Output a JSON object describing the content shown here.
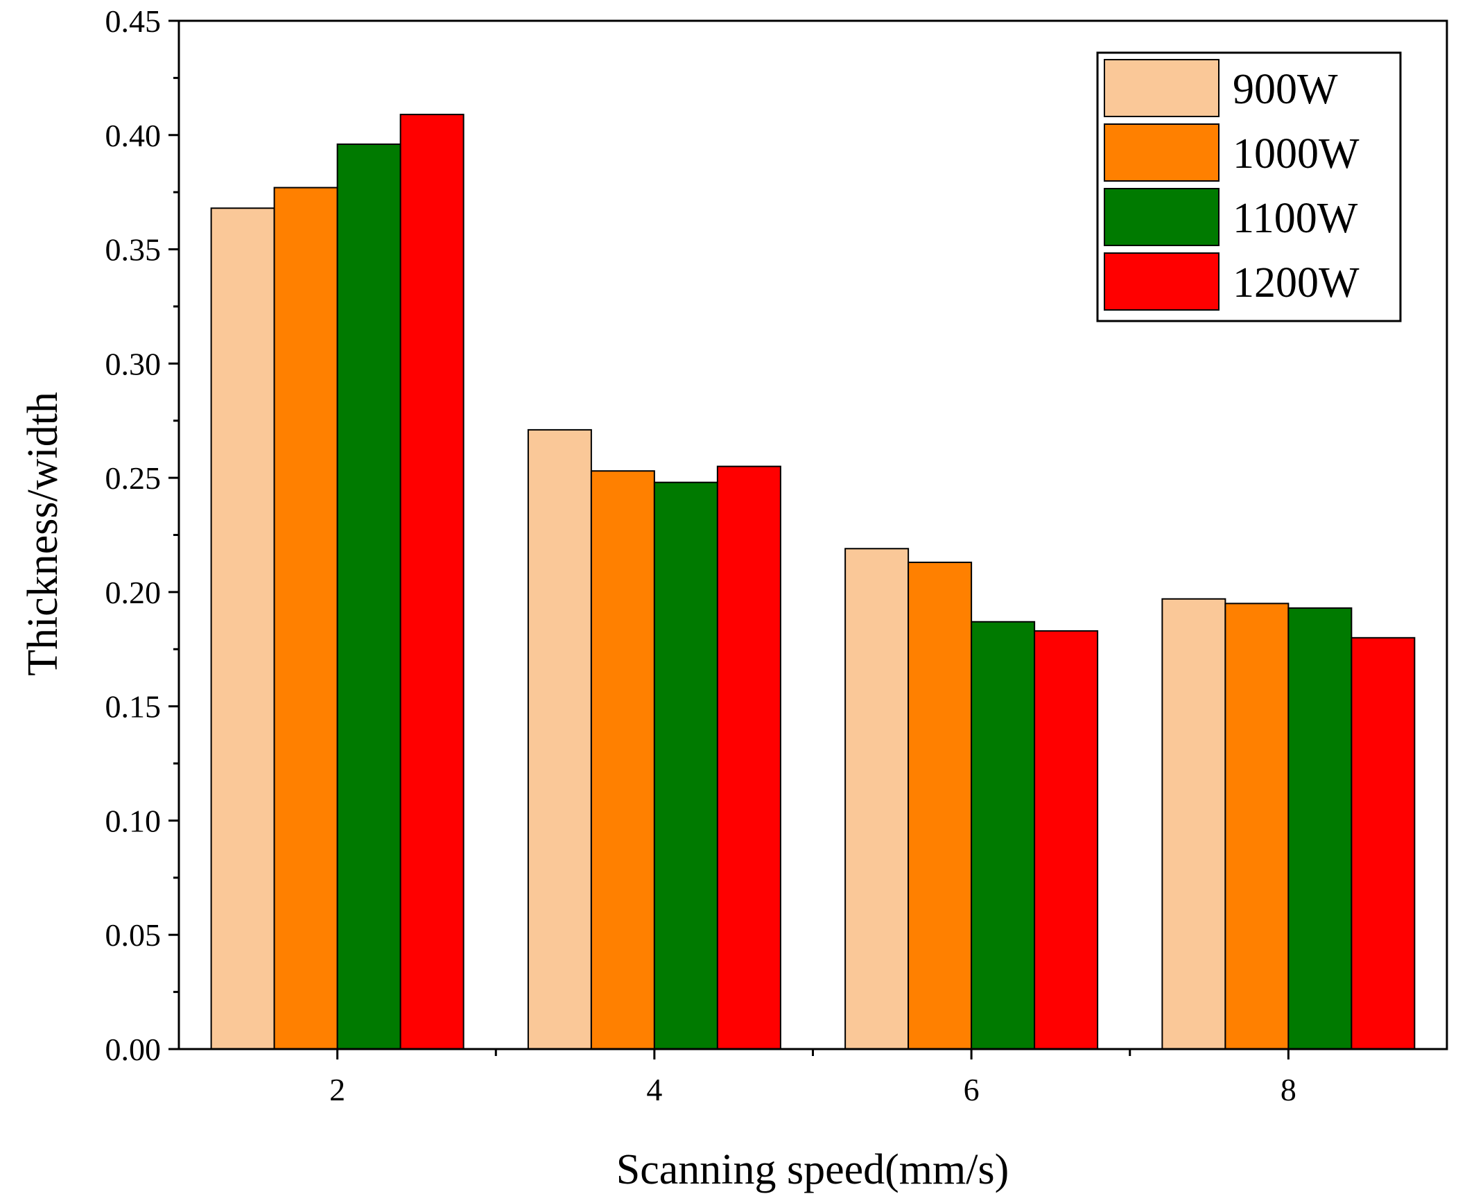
{
  "chart_data": {
    "type": "bar",
    "title": "",
    "xlabel": "Scanning speed(mm/s)",
    "ylabel": "Thickness/width",
    "categories": [
      "2",
      "4",
      "6",
      "8"
    ],
    "ylim": [
      0,
      0.45
    ],
    "yticks": [
      "0.00",
      "0.05",
      "0.10",
      "0.15",
      "0.20",
      "0.25",
      "0.30",
      "0.35",
      "0.40",
      "0.45"
    ],
    "grid": false,
    "legend_position": "top-right",
    "series": [
      {
        "name": "900W",
        "color": "#FAC898",
        "values": [
          0.368,
          0.271,
          0.219,
          0.197
        ]
      },
      {
        "name": "1000W",
        "color": "#FF8000",
        "values": [
          0.377,
          0.253,
          0.213,
          0.195
        ]
      },
      {
        "name": "1100W",
        "color": "#007A00",
        "values": [
          0.396,
          0.248,
          0.187,
          0.193
        ]
      },
      {
        "name": "1200W",
        "color": "#FF0000",
        "values": [
          0.409,
          0.255,
          0.183,
          0.18
        ]
      }
    ]
  }
}
